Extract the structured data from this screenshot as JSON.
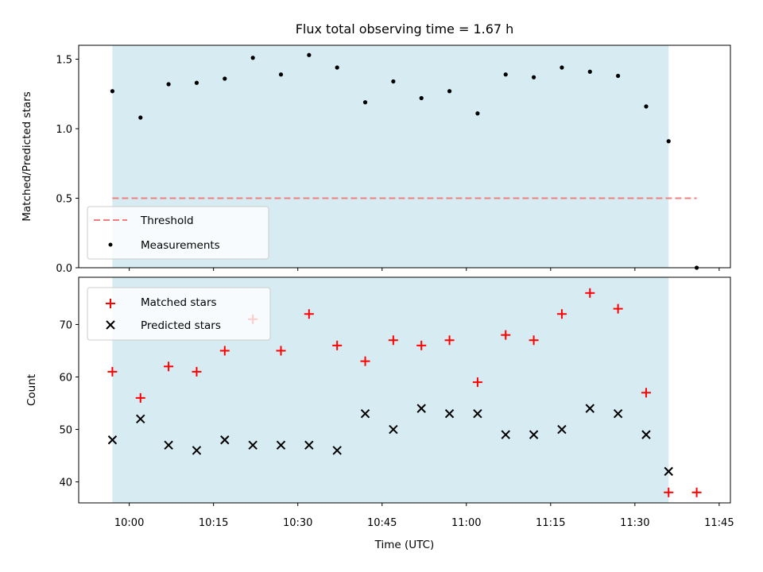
{
  "chart_data": [
    {
      "type": "scatter",
      "title": "Flux total observing time = 1.67 h",
      "xlabel": "",
      "ylabel": "Matched/Predicted stars",
      "ylim": [
        0,
        1.6
      ],
      "yticks": [
        0.0,
        0.5,
        1.0,
        1.5
      ],
      "ytick_labels": [
        "0.0",
        "0.5",
        "1.0",
        "1.5"
      ],
      "observing_window": [
        "09:57",
        "11:36"
      ],
      "observing_window_color": "#add8e6",
      "threshold": {
        "name": "Threshold",
        "value": 0.5,
        "x_range": [
          "09:57",
          "11:41"
        ],
        "color": "#f08080",
        "style": "dashed"
      },
      "series": [
        {
          "name": "Measurements",
          "color": "#000000",
          "marker": "dot",
          "x": [
            "09:57",
            "10:02",
            "10:07",
            "10:12",
            "10:17",
            "10:22",
            "10:27",
            "10:32",
            "10:37",
            "10:42",
            "10:47",
            "10:52",
            "10:57",
            "11:02",
            "11:07",
            "11:12",
            "11:17",
            "11:22",
            "11:27",
            "11:32",
            "11:36",
            "11:41"
          ],
          "y": [
            1.27,
            1.08,
            1.32,
            1.33,
            1.36,
            1.51,
            1.39,
            1.53,
            1.44,
            1.19,
            1.34,
            1.22,
            1.27,
            1.11,
            1.39,
            1.37,
            1.44,
            1.41,
            1.38,
            1.16,
            0.91,
            0.0
          ]
        }
      ],
      "legend": {
        "position": "lower-left",
        "entries": [
          "Threshold",
          "Measurements"
        ]
      }
    },
    {
      "type": "scatter",
      "title": "",
      "xlabel": "Time (UTC)",
      "ylabel": "Count",
      "ylim": [
        36,
        79
      ],
      "yticks": [
        40,
        50,
        60,
        70
      ],
      "ytick_labels": [
        "40",
        "50",
        "60",
        "70"
      ],
      "xticks": [
        "10:00",
        "10:15",
        "10:30",
        "10:45",
        "11:00",
        "11:15",
        "11:30",
        "11:45"
      ],
      "xlim": [
        "09:51",
        "11:47"
      ],
      "observing_window": [
        "09:57",
        "11:36"
      ],
      "series": [
        {
          "name": "Matched stars",
          "color": "#ff0000",
          "marker": "plus",
          "x": [
            "09:57",
            "10:02",
            "10:07",
            "10:12",
            "10:17",
            "10:22",
            "10:27",
            "10:32",
            "10:37",
            "10:42",
            "10:47",
            "10:52",
            "10:57",
            "11:02",
            "11:07",
            "11:12",
            "11:17",
            "11:22",
            "11:27",
            "11:32",
            "11:36",
            "11:41"
          ],
          "y": [
            61,
            56,
            62,
            61,
            65,
            71,
            65,
            72,
            66,
            63,
            67,
            66,
            67,
            59,
            68,
            67,
            72,
            76,
            73,
            57,
            38,
            38
          ]
        },
        {
          "name": "Predicted stars",
          "color": "#000000",
          "marker": "x",
          "x": [
            "09:57",
            "10:02",
            "10:07",
            "10:12",
            "10:17",
            "10:22",
            "10:27",
            "10:32",
            "10:37",
            "10:42",
            "10:47",
            "10:52",
            "10:57",
            "11:02",
            "11:07",
            "11:12",
            "11:17",
            "11:22",
            "11:27",
            "11:32",
            "11:36"
          ],
          "y": [
            48,
            52,
            47,
            46,
            48,
            47,
            47,
            47,
            46,
            53,
            50,
            54,
            53,
            53,
            49,
            49,
            50,
            54,
            53,
            49,
            42
          ]
        }
      ],
      "legend": {
        "position": "upper-left",
        "entries": [
          "Matched stars",
          "Predicted stars"
        ]
      }
    }
  ]
}
